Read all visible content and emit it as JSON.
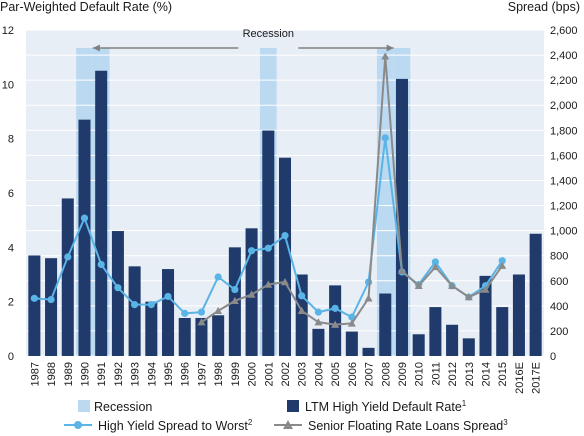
{
  "chart_data": {
    "type": "bar",
    "left_axis_title": "Par-Weighted Default Rate (%)",
    "right_axis_title": "Spread (bps)",
    "categories": [
      "1987",
      "1988",
      "1989",
      "1990",
      "1991",
      "1992",
      "1993",
      "1994",
      "1995",
      "1996",
      "1997",
      "1998",
      "1999",
      "2000",
      "2001",
      "2002",
      "2003",
      "2004",
      "2005",
      "2006",
      "2007",
      "2008",
      "2009",
      "2010",
      "2011",
      "2012",
      "2013",
      "2014",
      "2015",
      "2016E",
      "2017E"
    ],
    "ylim_left": [
      0,
      12
    ],
    "yticks_left": [
      "0",
      "2",
      "4",
      "6",
      "8",
      "10",
      "12"
    ],
    "ylim_right": [
      0,
      2600
    ],
    "yticks_right": [
      "0",
      "200",
      "400",
      "600",
      "800",
      "1,000",
      "1,200",
      "1,400",
      "1,600",
      "1,800",
      "2,000",
      "2,200",
      "2,400",
      "2,600"
    ],
    "grid": "horizontal",
    "recession_label": "Recession",
    "recession_years": [
      "1990",
      "1991",
      "2001",
      "2008",
      "2009"
    ],
    "series": [
      {
        "name": "LTM High Yield Default Rate",
        "footnote": "1",
        "kind": "bar",
        "axis": "left",
        "color": "#1f3a6b",
        "values": [
          3.7,
          3.6,
          5.8,
          8.7,
          10.5,
          4.6,
          3.3,
          2.0,
          3.2,
          1.4,
          1.4,
          1.5,
          4.0,
          4.7,
          8.3,
          7.3,
          3.0,
          1.0,
          2.6,
          0.9,
          0.3,
          2.3,
          10.2,
          0.8,
          1.8,
          1.15,
          0.65,
          2.95,
          1.8,
          3.0,
          4.5
        ]
      },
      {
        "name": "High Yield Spread to Worst",
        "footnote": "2",
        "kind": "line",
        "axis": "right",
        "color": "#5ab4e6",
        "values": [
          460,
          450,
          790,
          1100,
          730,
          545,
          410,
          410,
          475,
          340,
          350,
          630,
          530,
          840,
          860,
          960,
          480,
          350,
          380,
          310,
          590,
          1740,
          670,
          570,
          750,
          560,
          470,
          560,
          760,
          null,
          null
        ]
      },
      {
        "name": "Senior Floating Rate Loans Spread",
        "footnote": "3",
        "kind": "line",
        "axis": "right",
        "color": "#8a8a8a",
        "values": [
          null,
          null,
          null,
          null,
          null,
          null,
          null,
          null,
          null,
          null,
          270,
          360,
          440,
          490,
          570,
          590,
          360,
          270,
          250,
          260,
          460,
          2390,
          680,
          560,
          710,
          560,
          470,
          530,
          720,
          null,
          null
        ]
      }
    ],
    "legend": {
      "recession": "Recession",
      "default_rate": "LTM High Yield Default Rate",
      "default_rate_sup": "1",
      "hy_spread": "High Yield Spread to Worst",
      "hy_spread_sup": "2",
      "loan_spread": "Senior Floating Rate Loans Spread",
      "loan_spread_sup": "3"
    },
    "colors": {
      "recession": "#bcd9f2",
      "plot_background": "#e8eef5",
      "grid": "#ffffff",
      "annotation": "#808080"
    }
  }
}
